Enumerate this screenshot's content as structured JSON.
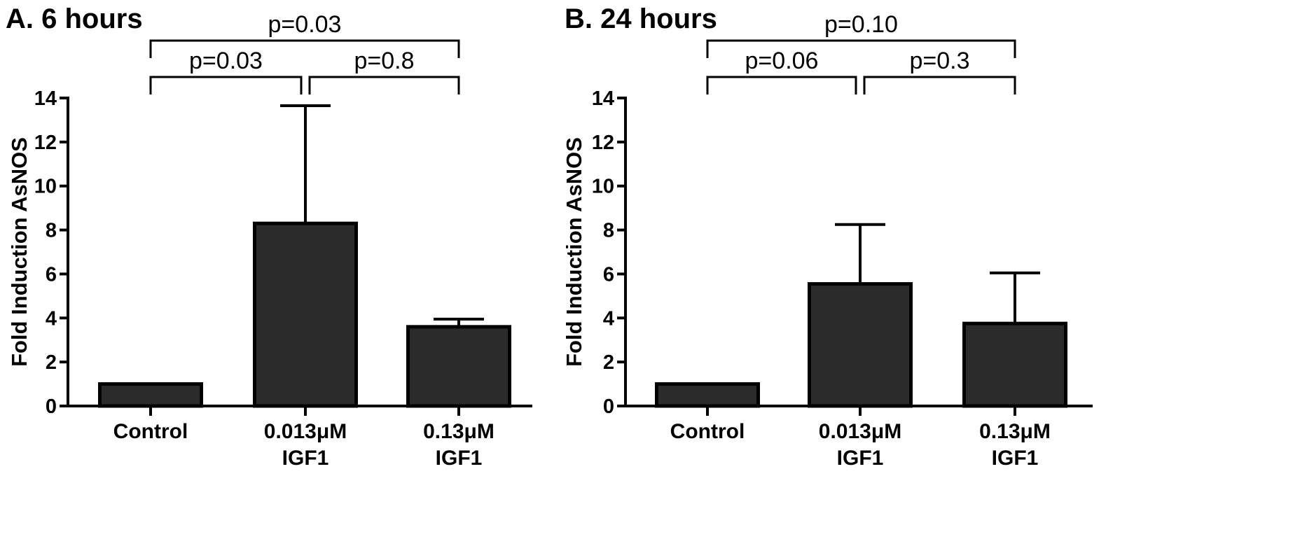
{
  "chart_data": [
    {
      "type": "bar",
      "title": "A. 6 hours",
      "ylabel": "Fold Induction AsNOS",
      "ylim": [
        0,
        14
      ],
      "yticks": [
        0,
        2,
        4,
        6,
        8,
        10,
        12,
        14
      ],
      "categories": [
        {
          "line1": "Control",
          "line2": ""
        },
        {
          "line1": "0.013μM",
          "line2": "IGF1"
        },
        {
          "line1": "0.13μM",
          "line2": "IGF1"
        }
      ],
      "values": [
        1.0,
        8.3,
        3.6
      ],
      "errors": [
        0.0,
        5.35,
        0.35
      ],
      "comparisons": [
        {
          "from": 0,
          "to": 1,
          "label": "p=0.03",
          "level": 1
        },
        {
          "from": 1,
          "to": 2,
          "label": "p=0.8",
          "level": 1
        },
        {
          "from": 0,
          "to": 2,
          "label": "p=0.03",
          "level": 2
        }
      ]
    },
    {
      "type": "bar",
      "title": "B. 24 hours",
      "ylabel": "Fold Induction AsNOS",
      "ylim": [
        0,
        14
      ],
      "yticks": [
        0,
        2,
        4,
        6,
        8,
        10,
        12,
        14
      ],
      "categories": [
        {
          "line1": "Control",
          "line2": ""
        },
        {
          "line1": "0.013μM",
          "line2": "IGF1"
        },
        {
          "line1": "0.13μM",
          "line2": "IGF1"
        }
      ],
      "values": [
        1.0,
        5.55,
        3.75
      ],
      "errors": [
        0.0,
        2.7,
        2.3
      ],
      "comparisons": [
        {
          "from": 0,
          "to": 1,
          "label": "p=0.06",
          "level": 1
        },
        {
          "from": 1,
          "to": 2,
          "label": "p=0.3",
          "level": 1
        },
        {
          "from": 0,
          "to": 2,
          "label": "p=0.10",
          "level": 2
        }
      ]
    }
  ]
}
